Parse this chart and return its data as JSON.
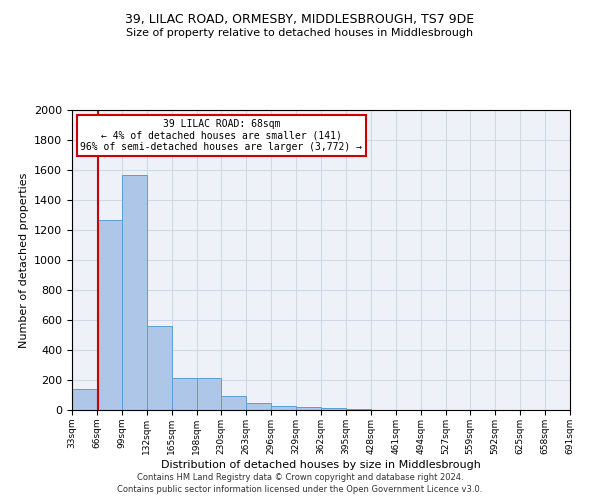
{
  "title1": "39, LILAC ROAD, ORMESBY, MIDDLESBROUGH, TS7 9DE",
  "title2": "Size of property relative to detached houses in Middlesbrough",
  "xlabel": "Distribution of detached houses by size in Middlesbrough",
  "ylabel": "Number of detached properties",
  "footer1": "Contains HM Land Registry data © Crown copyright and database right 2024.",
  "footer2": "Contains public sector information licensed under the Open Government Licence v3.0.",
  "annotation_line1": "39 LILAC ROAD: 68sqm",
  "annotation_line2": "← 4% of detached houses are smaller (141)",
  "annotation_line3": "96% of semi-detached houses are larger (3,772) →",
  "property_size": 68,
  "bin_edges": [
    33,
    66,
    99,
    132,
    165,
    198,
    230,
    263,
    296,
    329,
    362,
    395,
    428,
    461,
    494,
    527,
    559,
    592,
    625,
    658,
    691
  ],
  "bar_heights": [
    140,
    1270,
    1570,
    560,
    215,
    215,
    95,
    50,
    25,
    20,
    15,
    5,
    3,
    2,
    1,
    1,
    0,
    0,
    0,
    0
  ],
  "bar_color": "#aec6e8",
  "bar_edge_color": "#5a9fd4",
  "vline_color": "#cc0000",
  "annotation_box_color": "#cc0000",
  "grid_color": "#d0d8e8",
  "background_color": "#eef2f8",
  "ylim": [
    0,
    2000
  ],
  "yticks": [
    0,
    200,
    400,
    600,
    800,
    1000,
    1200,
    1400,
    1600,
    1800,
    2000
  ]
}
